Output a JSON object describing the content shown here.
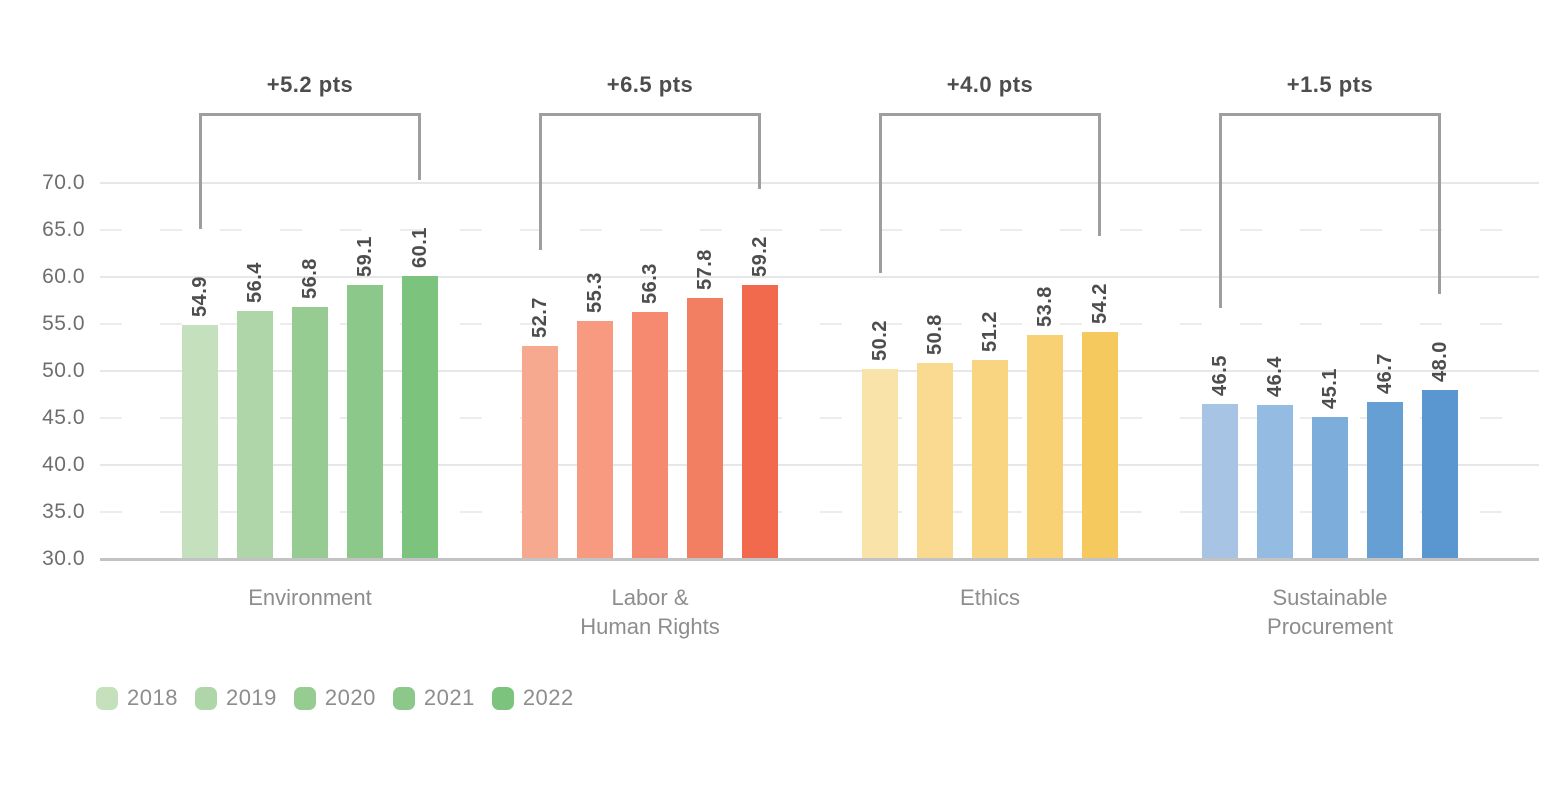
{
  "chart_data": {
    "type": "bar",
    "title": "",
    "ylabel": "",
    "xlabel": "",
    "ylim": [
      30,
      70
    ],
    "ytick_step": 5,
    "yticks": [
      {
        "value": 70,
        "label": "70.0",
        "line": "solid"
      },
      {
        "value": 65,
        "label": "65.0",
        "line": "dashed"
      },
      {
        "value": 60,
        "label": "60.0",
        "line": "solid"
      },
      {
        "value": 55,
        "label": "55.0",
        "line": "dashed"
      },
      {
        "value": 50,
        "label": "50.0",
        "line": "solid"
      },
      {
        "value": 45,
        "label": "45.0",
        "line": "dashed"
      },
      {
        "value": 40,
        "label": "40.0",
        "line": "solid"
      },
      {
        "value": 35,
        "label": "35.0",
        "line": "dashed"
      },
      {
        "value": 30,
        "label": "30.0",
        "line": "baseline"
      }
    ],
    "x_series_years": [
      "2018",
      "2019",
      "2020",
      "2021",
      "2022"
    ],
    "groups": [
      {
        "key": "environment",
        "category_lines": [
          "Environment"
        ],
        "delta_label": "+5.2 pts",
        "values": [
          54.9,
          56.4,
          56.8,
          59.1,
          60.1
        ],
        "value_labels": [
          "54.9",
          "56.4",
          "56.8",
          "59.1",
          "60.1"
        ],
        "bar_colors": [
          "#c4e0bd",
          "#aed6a8",
          "#96cb91",
          "#8cc88a",
          "#7cc47d"
        ]
      },
      {
        "key": "labor-human-rights",
        "category_lines": [
          "Labor &",
          "Human Rights"
        ],
        "delta_label": "+6.5 pts",
        "values": [
          52.7,
          55.3,
          56.3,
          57.8,
          59.2
        ],
        "value_labels": [
          "52.7",
          "55.3",
          "56.3",
          "57.8",
          "59.2"
        ],
        "bar_colors": [
          "#f6a98e",
          "#f79a80",
          "#f58a70",
          "#f37f63",
          "#f16a4e"
        ]
      },
      {
        "key": "ethics",
        "category_lines": [
          "Ethics"
        ],
        "delta_label": "+4.0 pts",
        "values": [
          50.2,
          50.8,
          51.2,
          53.8,
          54.2
        ],
        "value_labels": [
          "50.2",
          "50.8",
          "51.2",
          "53.8",
          "54.2"
        ],
        "bar_colors": [
          "#fae3a8",
          "#fada90",
          "#f9d581",
          "#f7d173",
          "#f6c95f"
        ]
      },
      {
        "key": "sustainable-procurement",
        "category_lines": [
          "Sustainable",
          "Procurement"
        ],
        "delta_label": "+1.5 pts",
        "values": [
          46.5,
          46.4,
          45.1,
          46.7,
          48.0
        ],
        "value_labels": [
          "46.5",
          "46.4",
          "45.1",
          "46.7",
          "48.0"
        ],
        "bar_colors": [
          "#a8c4e5",
          "#94bbe2",
          "#7dadda",
          "#669fd4",
          "#5a97d0"
        ]
      }
    ],
    "legend": {
      "position": "bottom-left",
      "labels": [
        "2018",
        "2019",
        "2020",
        "2021",
        "2022"
      ],
      "colors": [
        "#c4e0bd",
        "#aed6a8",
        "#96cb91",
        "#8cc88a",
        "#7cc47d"
      ]
    },
    "grid": "horizontal",
    "palette": {
      "grid_major": "#e7e7e7",
      "grid_minor": "#ececec",
      "axis_baseline": "#c3c3c3",
      "bracket": "#9e9e9e",
      "value_text": "#4d4d4d",
      "tick_text": "#6e6e6e",
      "category_text": "#8d8d8d",
      "background": "#ffffff"
    }
  }
}
